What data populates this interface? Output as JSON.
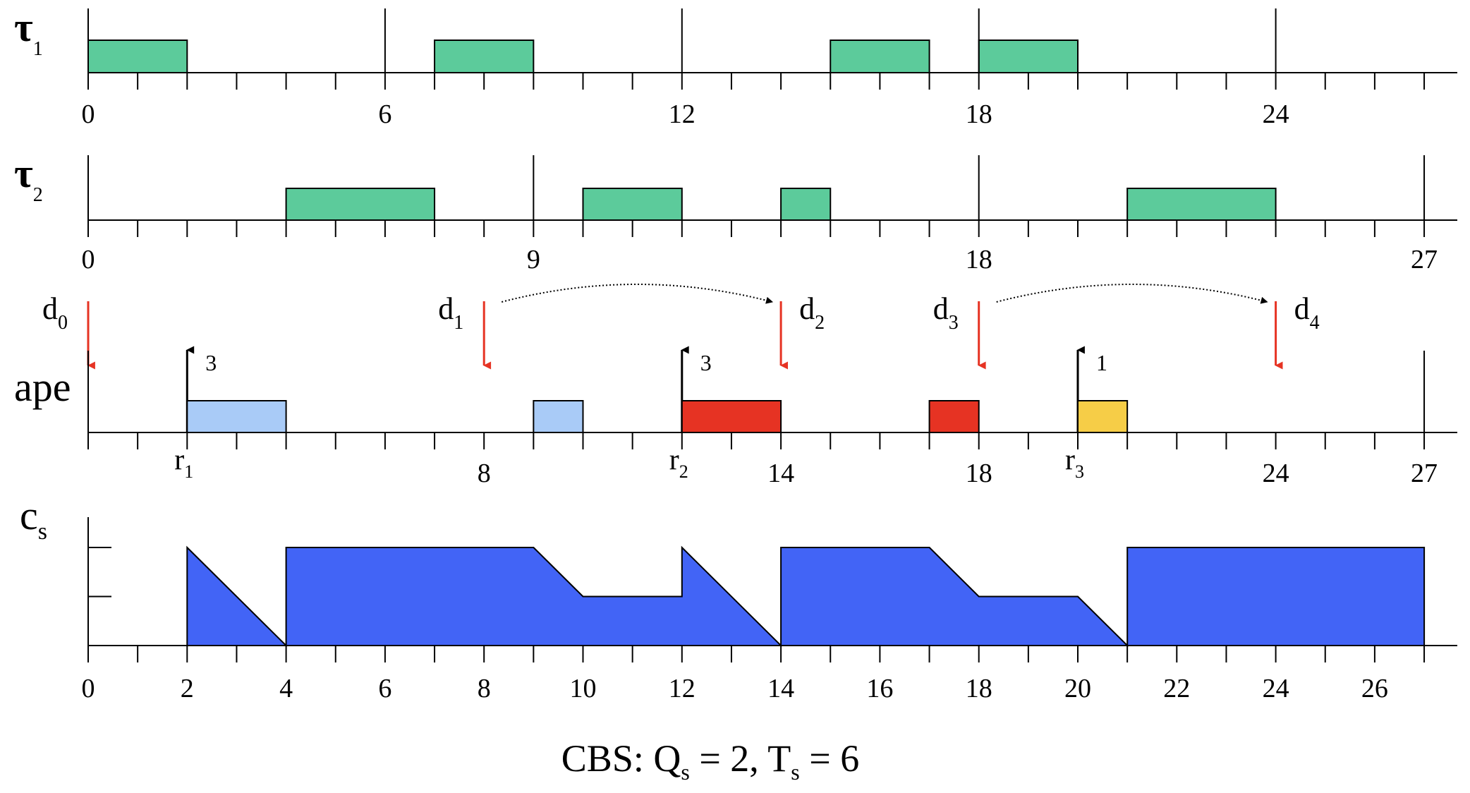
{
  "chart_data": {
    "type": "timeline",
    "units": 28,
    "colors": {
      "task": "#5ccb9b",
      "ape_1": "#a9cbf7",
      "ape_2": "#e63323",
      "ape_3": "#f6cd47",
      "budget": "#4264f6",
      "deadline_arrow": "#e63323",
      "release_arrow": "#000000"
    },
    "rows": {
      "tau1": {
        "label": "τ",
        "sub": "1",
        "blocks": [
          [
            0,
            2
          ],
          [
            7,
            9
          ],
          [
            15,
            17
          ],
          [
            18,
            20
          ]
        ],
        "majors": [
          6,
          12,
          18,
          24
        ],
        "ticks": [
          {
            "x": 0,
            "label": "0"
          },
          {
            "x": 6,
            "label": "6"
          },
          {
            "x": 12,
            "label": "12"
          },
          {
            "x": 18,
            "label": "18"
          },
          {
            "x": 24,
            "label": "24"
          }
        ]
      },
      "tau2": {
        "label": "τ",
        "sub": "2",
        "blocks": [
          [
            4,
            7
          ],
          [
            10,
            12
          ],
          [
            14,
            15
          ],
          [
            21,
            24
          ]
        ],
        "majors": [
          9,
          18,
          27
        ],
        "ticks": [
          {
            "x": 0,
            "label": "0"
          },
          {
            "x": 9,
            "label": "9"
          },
          {
            "x": 18,
            "label": "18"
          },
          {
            "x": 27,
            "label": "27"
          }
        ]
      },
      "ape": {
        "label": "ape",
        "blocks": [
          {
            "start": 2,
            "end": 4,
            "job": 1
          },
          {
            "start": 9,
            "end": 10,
            "job": 1
          },
          {
            "start": 12,
            "end": 14,
            "job": 2
          },
          {
            "start": 17,
            "end": 18,
            "job": 2
          },
          {
            "start": 20,
            "end": 21,
            "job": 3
          }
        ],
        "majors": [
          27
        ],
        "releases": [
          {
            "x": 2,
            "size": "3",
            "label": "r",
            "sub": "1"
          },
          {
            "x": 12,
            "size": "3",
            "label": "r",
            "sub": "2"
          },
          {
            "x": 20,
            "size": "1",
            "label": "r",
            "sub": "3"
          }
        ],
        "deadlines": [
          {
            "x": 0,
            "label": "d",
            "sub": "0",
            "side": "left"
          },
          {
            "x": 8,
            "label": "d",
            "sub": "1",
            "side": "left"
          },
          {
            "x": 14,
            "label": "d",
            "sub": "2",
            "side": "right"
          },
          {
            "x": 18,
            "label": "d",
            "sub": "3",
            "side": "left"
          },
          {
            "x": 24,
            "label": "d",
            "sub": "4",
            "side": "right"
          }
        ],
        "postponements": [
          [
            8,
            14
          ],
          [
            18,
            24
          ]
        ],
        "ticks": [
          {
            "x": 8,
            "label": "8"
          },
          {
            "x": 14,
            "label": "14"
          },
          {
            "x": 18,
            "label": "18"
          },
          {
            "x": 24,
            "label": "24"
          },
          {
            "x": 27,
            "label": "27"
          }
        ]
      },
      "cs": {
        "label": "c",
        "sub": "s",
        "ylim": [
          0,
          2
        ],
        "budget_curve": [
          [
            2,
            2
          ],
          [
            4,
            0
          ],
          [
            4,
            2
          ],
          [
            9,
            2
          ],
          [
            10,
            1
          ],
          [
            12,
            1
          ],
          [
            12,
            2
          ],
          [
            14,
            0
          ],
          [
            14,
            2
          ],
          [
            17,
            2
          ],
          [
            18,
            1
          ],
          [
            20,
            1
          ],
          [
            21,
            0
          ],
          [
            21,
            2
          ],
          [
            27,
            2
          ],
          [
            27,
            0
          ],
          [
            2,
            0
          ]
        ],
        "ticks": [
          {
            "x": 0,
            "label": "0"
          },
          {
            "x": 2,
            "label": "2"
          },
          {
            "x": 4,
            "label": "4"
          },
          {
            "x": 6,
            "label": "6"
          },
          {
            "x": 8,
            "label": "8"
          },
          {
            "x": 10,
            "label": "10"
          },
          {
            "x": 12,
            "label": "12"
          },
          {
            "x": 14,
            "label": "14"
          },
          {
            "x": 16,
            "label": "16"
          },
          {
            "x": 18,
            "label": "18"
          },
          {
            "x": 20,
            "label": "20"
          },
          {
            "x": 22,
            "label": "22"
          },
          {
            "x": 24,
            "label": "24"
          },
          {
            "x": 26,
            "label": "26"
          }
        ]
      }
    },
    "caption": {
      "main": "CBS: Q",
      "q_sub": "s",
      "mid": " = 2, T",
      "t_sub": "s",
      "end": " = 6"
    }
  }
}
